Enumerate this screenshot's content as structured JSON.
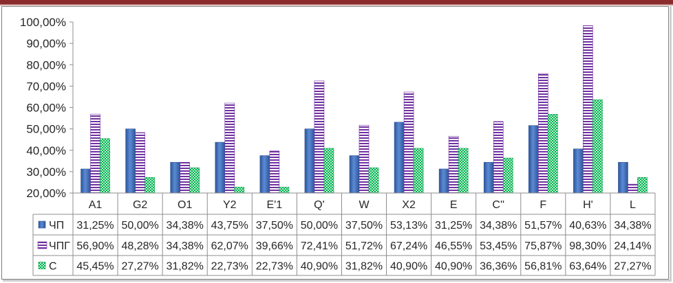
{
  "chart_data": {
    "type": "bar",
    "categories": [
      "A1",
      "G2",
      "O1",
      "Y2",
      "E'1",
      "Q'",
      "W",
      "X2",
      "E",
      "C''",
      "F",
      "H'",
      "L"
    ],
    "series": [
      {
        "name": "ЧП",
        "color": "#4472c4",
        "pattern": "solid-gradient",
        "values": [
          31.25,
          50.0,
          34.38,
          43.75,
          37.5,
          50.0,
          37.5,
          53.13,
          31.25,
          34.38,
          51.57,
          40.63,
          34.38
        ],
        "labels": [
          "31,25%",
          "50,00%",
          "34,38%",
          "43,75%",
          "37,50%",
          "50,00%",
          "37,50%",
          "53,13%",
          "31,25%",
          "34,38%",
          "51,57%",
          "40,63%",
          "34,38%"
        ]
      },
      {
        "name": "ЧПГ",
        "color": "#7030a0",
        "pattern": "horizontal-stripes",
        "values": [
          56.9,
          48.28,
          34.38,
          62.07,
          39.66,
          72.41,
          51.72,
          67.24,
          46.55,
          53.45,
          75.87,
          98.3,
          24.14
        ],
        "labels": [
          "56,90%",
          "48,28%",
          "34,38%",
          "62,07%",
          "39,66%",
          "72,41%",
          "51,72%",
          "67,24%",
          "46,55%",
          "53,45%",
          "75,87%",
          "98,30%",
          "24,14%"
        ]
      },
      {
        "name": "С",
        "color": "#00b050",
        "pattern": "checker",
        "values": [
          45.45,
          27.27,
          31.82,
          22.73,
          22.73,
          40.9,
          31.82,
          40.9,
          40.9,
          36.36,
          56.81,
          63.64,
          27.27
        ],
        "labels": [
          "45,45%",
          "27,27%",
          "31,82%",
          "22,73%",
          "22,73%",
          "40,90%",
          "31,82%",
          "40,90%",
          "40,90%",
          "36,36%",
          "56,81%",
          "63,64%",
          "27,27%"
        ]
      }
    ],
    "ylim": [
      20,
      100
    ],
    "yticks": [
      "20,00%",
      "30,00%",
      "40,00%",
      "50,00%",
      "60,00%",
      "70,00%",
      "80,00%",
      "90,00%",
      "100,00%"
    ],
    "grid": false,
    "data_table": true,
    "legend": "data-table"
  }
}
